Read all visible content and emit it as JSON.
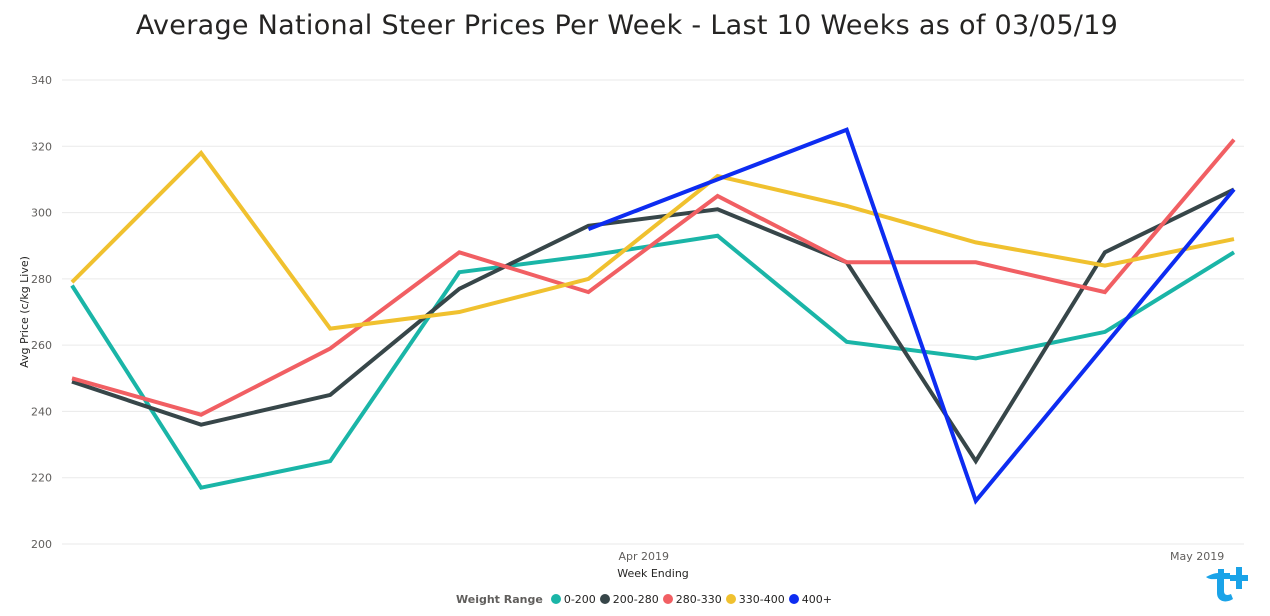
{
  "chart_data": {
    "type": "line",
    "title": "Average National Steer Prices Per Week - Last 10 Weeks as of 03/05/19",
    "xlabel": "Week Ending",
    "ylabel": "Avg Price (c/kg Live)",
    "ylim": [
      200,
      340
    ],
    "yticks": [
      200,
      220,
      240,
      260,
      280,
      300,
      320,
      340
    ],
    "xlim": [
      "2019-03-01",
      "2019-05-03"
    ],
    "xticks": [
      {
        "date": "2019-04-01",
        "label": "Apr 2019"
      },
      {
        "date": "2019-05-01",
        "label": "May 2019"
      }
    ],
    "x": [
      "2019-03-01",
      "2019-03-08",
      "2019-03-15",
      "2019-03-22",
      "2019-03-29",
      "2019-04-05",
      "2019-04-12",
      "2019-04-19",
      "2019-04-26",
      "2019-05-03"
    ],
    "legend_title": "Weight Range",
    "legend_position": "bottom-center",
    "grid": true,
    "series": [
      {
        "name": "0-200",
        "color": "#1ab5a7",
        "values": [
          278,
          217,
          225,
          282,
          287,
          293,
          261,
          256,
          264,
          288
        ]
      },
      {
        "name": "200-280",
        "color": "#374649",
        "values": [
          249,
          236,
          245,
          277,
          296,
          301,
          285,
          225,
          288,
          307
        ]
      },
      {
        "name": "280-330",
        "color": "#f15f63",
        "values": [
          250,
          239,
          259,
          288,
          276,
          305,
          285,
          285,
          276,
          322
        ]
      },
      {
        "name": "330-400",
        "color": "#f0c12f",
        "values": [
          279,
          318,
          265,
          270,
          280,
          311,
          302,
          291,
          284,
          292
        ]
      },
      {
        "name": "400+",
        "color": "#0d2cf1",
        "values": [
          null,
          null,
          null,
          null,
          295,
          310,
          325,
          213,
          260,
          307
        ]
      }
    ]
  }
}
